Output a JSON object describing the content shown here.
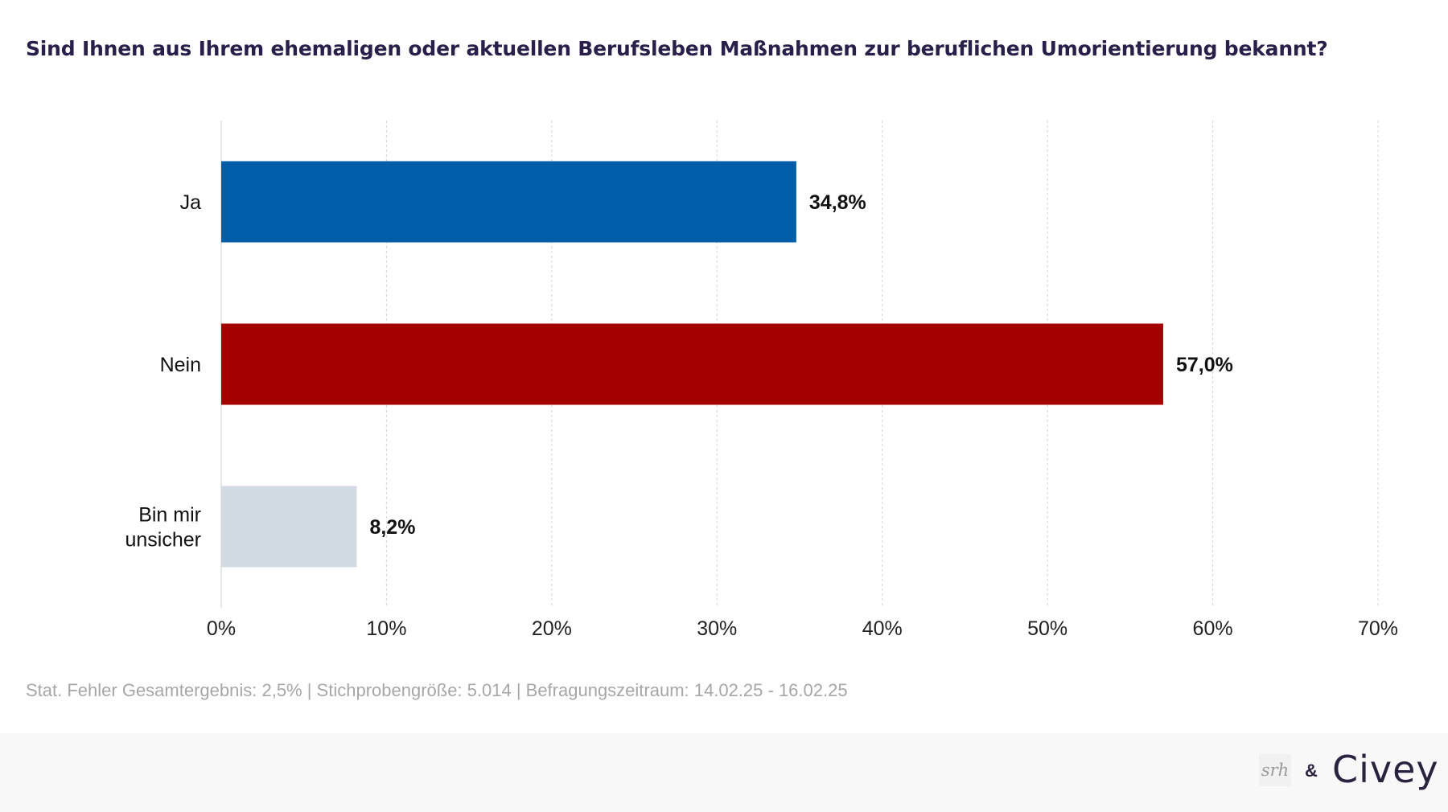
{
  "title": "Sind Ihnen aus Ihrem ehemaligen oder aktuellen Berufsleben Maßnahmen zur beruflichen Umorientierung bekannt?",
  "chart_data": {
    "type": "bar",
    "orientation": "horizontal",
    "categories": [
      "Ja",
      "Nein",
      "Bin mir unsicher"
    ],
    "category_label_lines": [
      [
        "Ja"
      ],
      [
        "Nein"
      ],
      [
        "Bin mir",
        "unsicher"
      ]
    ],
    "values": [
      34.8,
      57.0,
      8.2
    ],
    "value_labels": [
      "34,8%",
      "57,0%",
      "8,2%"
    ],
    "colors": [
      "#005ea8",
      "#a50000",
      "#d1dae1"
    ],
    "xlim": [
      0,
      70
    ],
    "xticks": [
      0,
      10,
      20,
      30,
      40,
      50,
      60,
      70
    ],
    "xtick_labels": [
      "0%",
      "10%",
      "20%",
      "30%",
      "40%",
      "50%",
      "60%",
      "70%"
    ],
    "grid": true,
    "xlabel": "",
    "ylabel": ""
  },
  "footnote": "Stat. Fehler Gesamtergebnis: 2,5% | Stichprobengröße: 5.014 | Befragungszeitraum: 14.02.25 - 16.02.25",
  "branding": {
    "srh": "srh",
    "amp": "&",
    "civey": "Civey"
  }
}
